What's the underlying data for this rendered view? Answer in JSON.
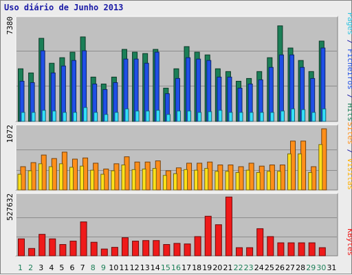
{
  "title": "Uso diário de Junho 2013",
  "colors": {
    "pages": "#33e0ff",
    "files": "#1f4fe6",
    "hits": "#1b7f57",
    "visits": "#ff8f1a",
    "sites": "#ffe11a",
    "kbytes": "#ef1a1a",
    "weekday_label": "#000000",
    "weekend_label": "#1b7f57"
  },
  "chart_data": [
    {
      "type": "bar",
      "panel": "hits",
      "ymax_label": "7380",
      "right_label": [
        {
          "text": "Pages",
          "color": "#33c4e0"
        },
        {
          "text": " / ",
          "color": "#1a1aa6"
        },
        {
          "text": "Ficheiros",
          "color": "#1f4fe6"
        },
        {
          "text": " / ",
          "color": "#1a1aa6"
        },
        {
          "text": "Hits",
          "color": "#1b7f57"
        }
      ],
      "ylim": [
        0,
        7380
      ],
      "categories": [
        "1",
        "2",
        "3",
        "4",
        "5",
        "6",
        "7",
        "8",
        "9",
        "10",
        "11",
        "12",
        "13",
        "14",
        "15",
        "16",
        "17",
        "18",
        "19",
        "20",
        "21",
        "22",
        "23",
        "24",
        "25",
        "26",
        "27",
        "28",
        "29",
        "30",
        "31"
      ],
      "series": [
        {
          "name": "Hits",
          "values": [
            3800,
            3500,
            6000,
            4200,
            4600,
            5000,
            6100,
            3200,
            2700,
            3200,
            5200,
            5000,
            4900,
            5200,
            2400,
            3800,
            5400,
            5000,
            4800,
            3800,
            3600,
            2900,
            3100,
            3600,
            4600,
            6900,
            5300,
            4400,
            3600,
            5800,
            0
          ]
        },
        {
          "name": "Ficheiros",
          "values": [
            2900,
            2800,
            5100,
            3500,
            4000,
            4400,
            5100,
            2700,
            2300,
            2800,
            4500,
            4500,
            4200,
            5000,
            2000,
            3100,
            4600,
            4500,
            4400,
            3200,
            3200,
            2400,
            2700,
            3000,
            3900,
            4800,
            4800,
            3900,
            3100,
            5300,
            0
          ]
        },
        {
          "name": "Pages",
          "values": [
            650,
            650,
            800,
            750,
            650,
            650,
            1000,
            650,
            500,
            650,
            900,
            750,
            750,
            800,
            500,
            750,
            750,
            650,
            700,
            800,
            650,
            650,
            650,
            650,
            650,
            750,
            900,
            850,
            650,
            900,
            0
          ]
        }
      ]
    },
    {
      "type": "bar",
      "panel": "visits",
      "ymax_label": "1072",
      "right_label": [
        {
          "text": "Sites",
          "color": "#ff8f1a"
        },
        {
          "text": " / ",
          "color": "#1a1aa6"
        },
        {
          "text": "Visitas",
          "color": "#ffb000"
        }
      ],
      "ylim": [
        0,
        1072
      ],
      "categories": [
        "1",
        "2",
        "3",
        "4",
        "5",
        "6",
        "7",
        "8",
        "9",
        "10",
        "11",
        "12",
        "13",
        "14",
        "15",
        "16",
        "17",
        "18",
        "19",
        "20",
        "21",
        "22",
        "23",
        "24",
        "25",
        "26",
        "27",
        "28",
        "29",
        "30",
        "31"
      ],
      "series": [
        {
          "name": "Visitas",
          "values": [
            400,
            470,
            600,
            540,
            650,
            530,
            550,
            460,
            360,
            450,
            570,
            480,
            480,
            500,
            330,
            380,
            460,
            460,
            480,
            430,
            430,
            400,
            460,
            410,
            430,
            430,
            840,
            840,
            400,
            1050,
            0
          ]
        },
        {
          "name": "Sites",
          "values": [
            270,
            330,
            450,
            400,
            450,
            390,
            410,
            340,
            270,
            330,
            430,
            350,
            360,
            370,
            250,
            280,
            350,
            340,
            370,
            320,
            320,
            300,
            340,
            300,
            320,
            320,
            620,
            620,
            300,
            780,
            0
          ]
        }
      ]
    },
    {
      "type": "bar",
      "panel": "kbytes",
      "ymax_label": "527632",
      "right_label": [
        {
          "text": "KBytes",
          "color": "#ef1a1a"
        }
      ],
      "ylim": [
        0,
        527632
      ],
      "categories": [
        "1",
        "2",
        "3",
        "4",
        "5",
        "6",
        "7",
        "8",
        "9",
        "10",
        "11",
        "12",
        "13",
        "14",
        "15",
        "16",
        "17",
        "18",
        "19",
        "20",
        "21",
        "22",
        "23",
        "24",
        "25",
        "26",
        "27",
        "28",
        "29",
        "30",
        "31"
      ],
      "series": [
        {
          "name": "KBytes",
          "values": [
            150000,
            65000,
            190000,
            150000,
            100000,
            130000,
            300000,
            120000,
            60000,
            75000,
            160000,
            130000,
            135000,
            135000,
            100000,
            110000,
            105000,
            170000,
            350000,
            275000,
            520000,
            72000,
            72000,
            240000,
            170000,
            115000,
            115000,
            115000,
            115000,
            72000,
            0
          ]
        }
      ]
    }
  ],
  "x_labels": [
    "1",
    "2",
    "3",
    "4",
    "5",
    "6",
    "7",
    "8",
    "9",
    "10",
    "11",
    "12",
    "13",
    "14",
    "15",
    "16",
    "17",
    "18",
    "19",
    "20",
    "21",
    "22",
    "23",
    "24",
    "25",
    "26",
    "27",
    "28",
    "29",
    "30",
    "31"
  ],
  "weekend_days": [
    "1",
    "2",
    "8",
    "9",
    "15",
    "16",
    "22",
    "23",
    "29",
    "30"
  ]
}
